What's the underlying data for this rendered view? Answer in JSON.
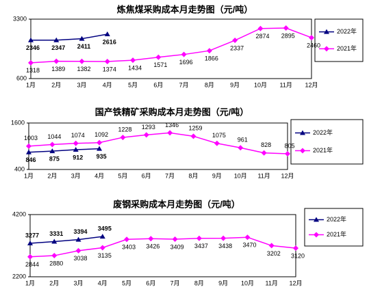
{
  "chart_data": [
    {
      "type": "line",
      "title": "炼焦煤采购成本月走势图（元/吨）",
      "categories": [
        "1月",
        "2月",
        "3月",
        "4月",
        "5月",
        "6月",
        "7月",
        "8月",
        "9月",
        "10月",
        "11月",
        "12月"
      ],
      "ylim": [
        600,
        3300
      ],
      "yticks": [
        600,
        3300
      ],
      "series": [
        {
          "name": "2022年",
          "color": "#000080",
          "values": [
            2346,
            2347,
            2411,
            2616,
            null,
            null,
            null,
            null,
            null,
            null,
            null,
            null
          ]
        },
        {
          "name": "2021年",
          "color": "#ff00ff",
          "values": [
            1318,
            1389,
            1382,
            1374,
            1434,
            1571,
            1696,
            1866,
            2337,
            2874,
            2895,
            2460
          ]
        }
      ]
    },
    {
      "type": "line",
      "title": "国产铁精矿采购成本月走势图（元/吨）",
      "categories": [
        "1月",
        "2月",
        "3月",
        "4月",
        "5月",
        "6月",
        "7月",
        "8月",
        "9月",
        "10月",
        "11月",
        "12月"
      ],
      "ylim": [
        400,
        1600
      ],
      "yticks": [
        400,
        1600
      ],
      "series": [
        {
          "name": "2022年",
          "color": "#000080",
          "values": [
            846,
            875,
            912,
            935,
            null,
            null,
            null,
            null,
            null,
            null,
            null,
            null
          ]
        },
        {
          "name": "2021年",
          "color": "#ff00ff",
          "values": [
            1003,
            1044,
            1074,
            1092,
            1228,
            1293,
            1346,
            1259,
            1075,
            961,
            828,
            805
          ]
        }
      ]
    },
    {
      "type": "line",
      "title": "废钢采购成本月走势图（元/吨）",
      "categories": [
        "1月",
        "2月",
        "3月",
        "4月",
        "5月",
        "6月",
        "7月",
        "8月",
        "9月",
        "10月",
        "11月",
        "12月"
      ],
      "ylim": [
        2200,
        4200
      ],
      "yticks": [
        2200,
        4200
      ],
      "series": [
        {
          "name": "2022年",
          "color": "#000080",
          "values": [
            3277,
            3331,
            3394,
            3495,
            null,
            null,
            null,
            null,
            null,
            null,
            null,
            null
          ]
        },
        {
          "name": "2021年",
          "color": "#ff00ff",
          "values": [
            2844,
            2880,
            3038,
            3135,
            3403,
            3426,
            3409,
            3437,
            3438,
            3470,
            3202,
            3120
          ]
        }
      ]
    }
  ]
}
